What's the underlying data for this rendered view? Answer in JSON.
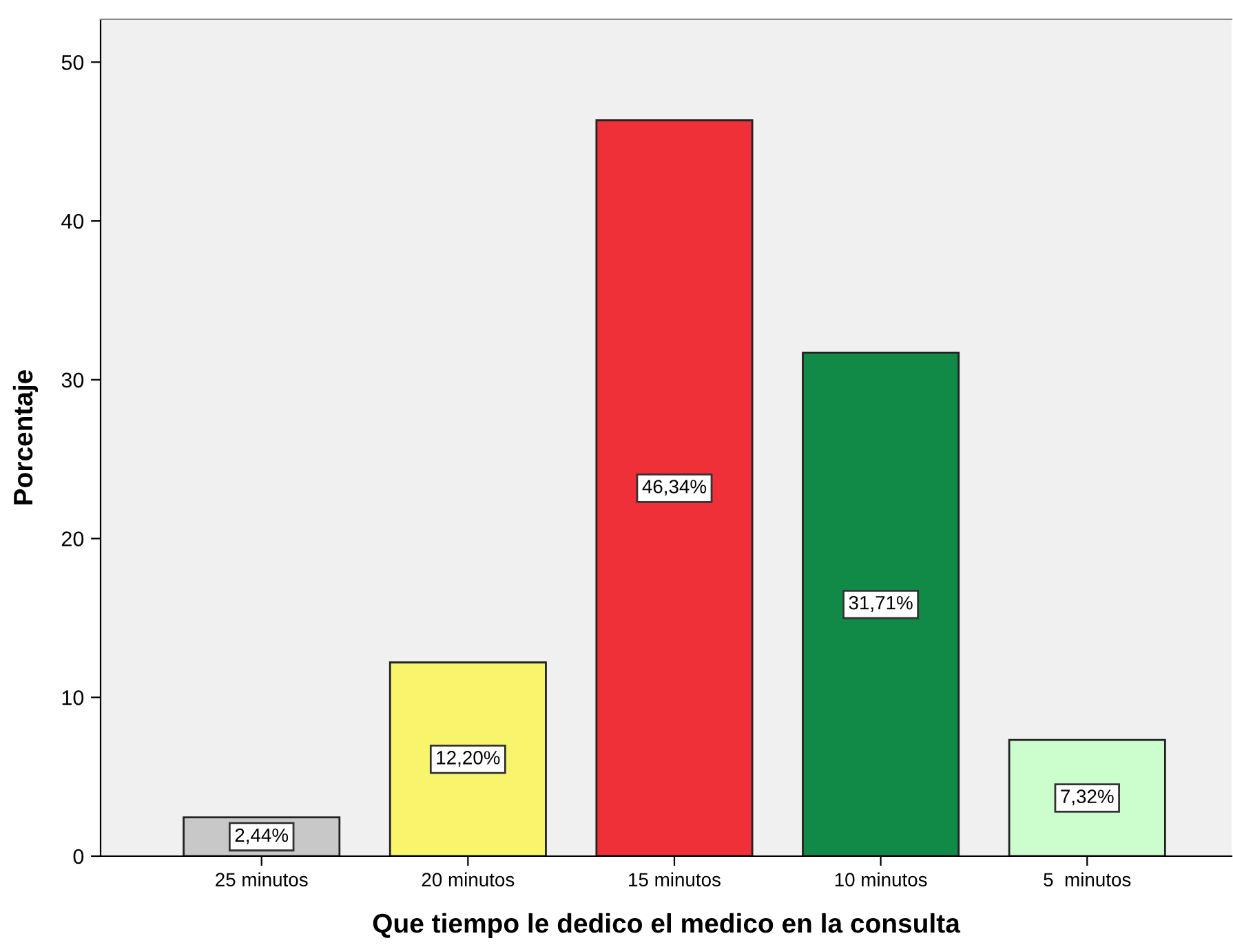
{
  "chart_data": {
    "type": "bar",
    "xlabel": "Que tiempo le dedico el medico en la consulta",
    "ylabel": "Porcentaje",
    "categories": [
      "25 minutos",
      "20 minutos",
      "15 minutos",
      "10 minutos",
      "5  minutos"
    ],
    "values": [
      2.44,
      12.2,
      46.34,
      31.71,
      7.32
    ],
    "colors": [
      "#c8c8c8",
      "#f8f46c",
      "#ef3038",
      "#118a48",
      "#ccfdcc"
    ],
    "value_labels": [
      "2,44%",
      "12,20%",
      "46,34%",
      "31,71%",
      "7,32%"
    ],
    "ylim": [
      0,
      52.7
    ],
    "yticks": [
      0,
      10,
      20,
      30,
      40,
      50
    ],
    "grid": false,
    "legend": false
  }
}
